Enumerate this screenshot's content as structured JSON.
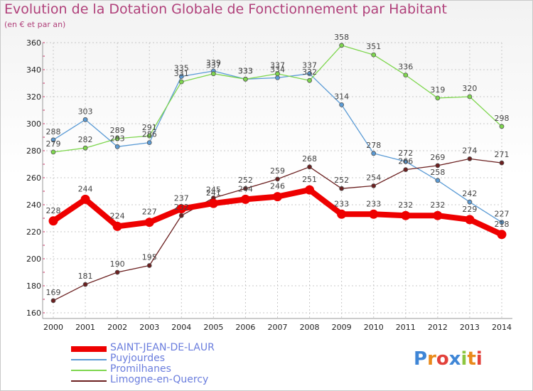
{
  "title": "Evolution de la Dotation Globale de Fonctionnement par Habitant",
  "subtitle": "(en € et par an)",
  "logo_text": "Proxiti",
  "colors": {
    "title": "#b0407a",
    "grid": "#c8c8c8",
    "legend_text": "#6a7ddd"
  },
  "chart_data": {
    "type": "line",
    "title": "Evolution de la Dotation Globale de Fonctionnement par Habitant",
    "subtitle": "(en € et par an)",
    "xlabel": "",
    "ylabel": "",
    "x": [
      "2000",
      "2001",
      "2002",
      "2003",
      "2004",
      "2005",
      "2006",
      "2007",
      "2008",
      "2009",
      "2010",
      "2011",
      "2012",
      "2013",
      "2014"
    ],
    "ylim": [
      160,
      360
    ],
    "yticks": [
      160,
      180,
      200,
      220,
      240,
      260,
      280,
      300,
      320,
      340,
      360
    ],
    "grid": true,
    "legend_position": "bottom-left",
    "series": [
      {
        "name": "SAINT-JEAN-DE-LAUR",
        "color": "#ee0000",
        "values": [
          228,
          244,
          224,
          227,
          237,
          241,
          244,
          246,
          251,
          233,
          233,
          232,
          232,
          229,
          218
        ]
      },
      {
        "name": "Puyjourdes",
        "color": "#5b9bd5",
        "values": [
          288,
          303,
          283,
          286,
          335,
          339,
          333,
          334,
          337,
          314,
          278,
          272,
          258,
          242,
          227
        ]
      },
      {
        "name": "Promilhanes",
        "color": "#7ed64e",
        "values": [
          279,
          282,
          289,
          291,
          331,
          337,
          333,
          337,
          332,
          358,
          351,
          336,
          319,
          320,
          298
        ]
      },
      {
        "name": "Limogne-en-Quercy",
        "color": "#6b2020",
        "values": [
          169,
          181,
          190,
          195,
          232,
          245,
          252,
          259,
          268,
          252,
          254,
          266,
          269,
          274,
          271
        ]
      }
    ]
  }
}
